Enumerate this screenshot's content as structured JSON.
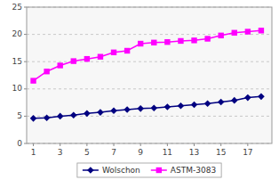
{
  "chart_data": {
    "type": "line",
    "x": [
      1,
      2,
      3,
      4,
      5,
      6,
      7,
      8,
      9,
      10,
      11,
      12,
      13,
      14,
      15,
      16,
      17,
      18
    ],
    "series": [
      {
        "name": "Wolschon",
        "color": "#000080",
        "marker": "diamond",
        "values": [
          4.6,
          4.7,
          5.0,
          5.2,
          5.5,
          5.7,
          6.0,
          6.2,
          6.4,
          6.5,
          6.7,
          6.9,
          7.1,
          7.3,
          7.6,
          7.9,
          8.4,
          8.6
        ]
      },
      {
        "name": "ASTM-3083",
        "color": "#FF00FF",
        "marker": "square",
        "values": [
          11.5,
          13.2,
          14.3,
          15.1,
          15.5,
          15.9,
          16.7,
          17.0,
          18.3,
          18.5,
          18.6,
          18.8,
          18.9,
          19.2,
          19.8,
          20.3,
          20.5,
          20.7
        ]
      }
    ],
    "xlim": [
      0.5,
      18.8
    ],
    "ylim": [
      0,
      25
    ],
    "xticks": [
      1,
      3,
      5,
      7,
      9,
      11,
      13,
      15,
      17
    ],
    "yticks": [
      0,
      5,
      10,
      15,
      20,
      25
    ],
    "grid": "y",
    "legend": "bottom"
  }
}
